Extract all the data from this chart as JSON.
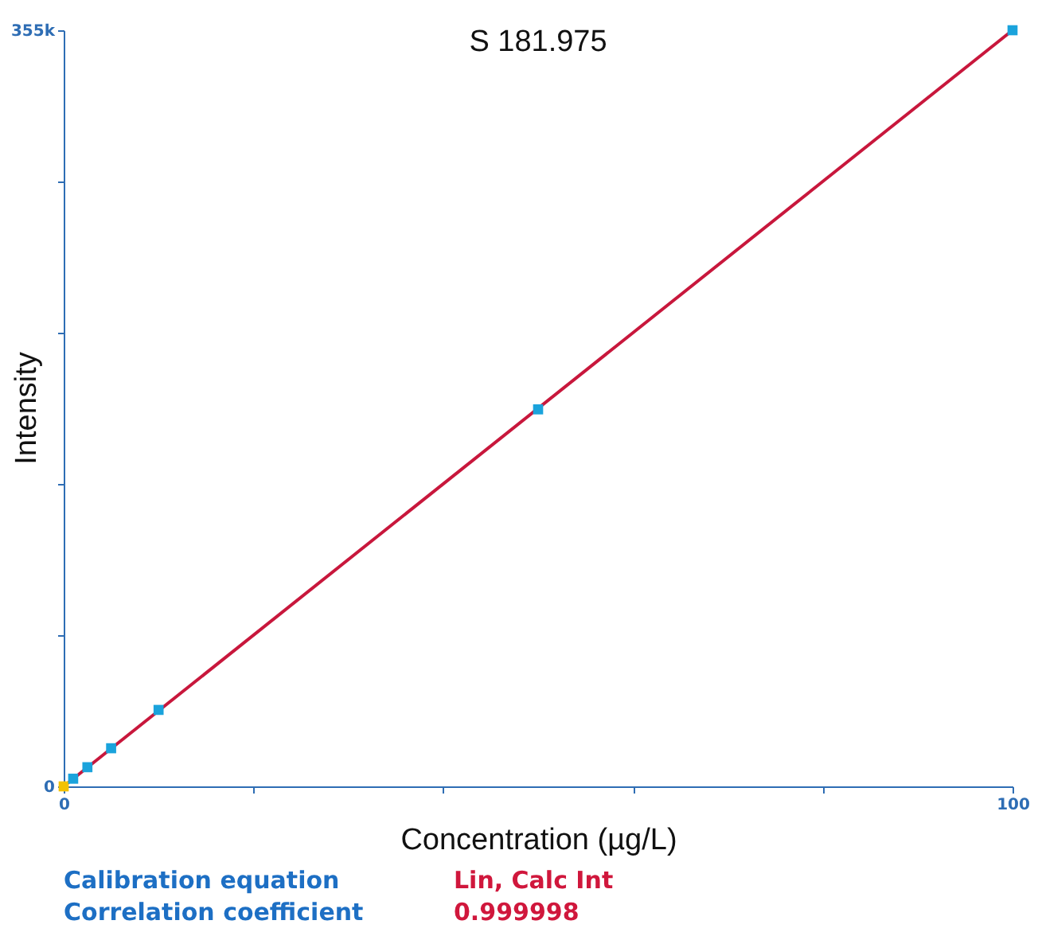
{
  "chart_data": {
    "type": "scatter",
    "title": "S 181.975",
    "xlabel": "Concentration (µg/L)",
    "ylabel": "Intensity",
    "series": [
      {
        "type": "line",
        "color": "#c8173c",
        "line_style": "solid",
        "x": [
          0,
          100
        ],
        "values": [
          0,
          355000
        ]
      },
      {
        "marker": "square",
        "color": "#f2c200",
        "x": [
          0
        ],
        "values": [
          0
        ]
      },
      {
        "marker": "square",
        "color": "#1aa3dc",
        "x": [
          1,
          2.5,
          5,
          10,
          50,
          100
        ],
        "values": [
          3600,
          9000,
          17900,
          35900,
          177000,
          355000
        ]
      }
    ],
    "xlim": [
      0,
      100
    ],
    "ylim": [
      0,
      355000
    ],
    "xticks": [
      0,
      {
        "value": 20,
        "label": null
      },
      {
        "value": 40,
        "label": null
      },
      {
        "value": 60,
        "label": null
      },
      {
        "value": 80,
        "label": null
      },
      100
    ],
    "yticks": [
      0,
      {
        "value": 71000,
        "label": null
      },
      {
        "value": 142000,
        "label": null
      },
      {
        "value": 213000,
        "label": null
      },
      {
        "value": 284000,
        "label": null
      },
      {
        "value": 355000,
        "label": "355k"
      }
    ],
    "annotations": [
      "Calibration equation",
      "Lin, Calc Int",
      "Correlation coefficient",
      "0.999998"
    ]
  }
}
